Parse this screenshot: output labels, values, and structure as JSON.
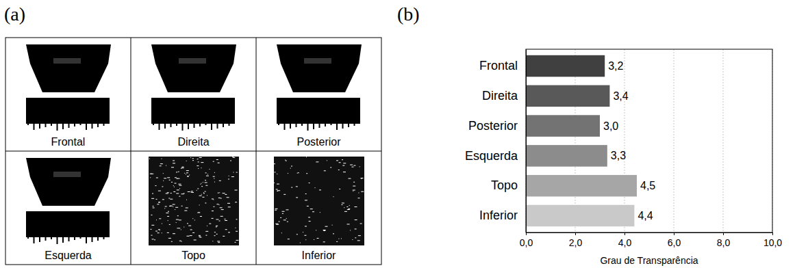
{
  "panel_labels": [
    "(a)",
    "(b)"
  ],
  "image_grid": {
    "captions": [
      "Frontal",
      "Direita",
      "Posterior",
      "Esquerda",
      "Topo",
      "Inferior"
    ]
  },
  "chart_data": {
    "type": "bar",
    "orientation": "horizontal",
    "categories": [
      "Frontal",
      "Direita",
      "Posterior",
      "Esquerda",
      "Topo",
      "Inferior"
    ],
    "values": [
      3.2,
      3.4,
      3.0,
      3.3,
      4.5,
      4.4
    ],
    "value_labels": [
      "3,2",
      "3,4",
      "3,0",
      "3,3",
      "4,5",
      "4,4"
    ],
    "colors": [
      "#404040",
      "#595959",
      "#737373",
      "#8c8c8c",
      "#a6a6a6",
      "#c9c9c9"
    ],
    "x_label": "Grau de Transparência",
    "xlim": [
      0,
      10
    ],
    "xticks": [
      {
        "value": 0,
        "label": "0,0"
      },
      {
        "value": 2,
        "label": "2,0"
      },
      {
        "value": 4,
        "label": "4,0"
      },
      {
        "value": 6,
        "label": "6,0"
      },
      {
        "value": 8,
        "label": "8,0"
      },
      {
        "value": 10,
        "label": "10,0"
      }
    ],
    "grid": true,
    "data_labels": true
  }
}
